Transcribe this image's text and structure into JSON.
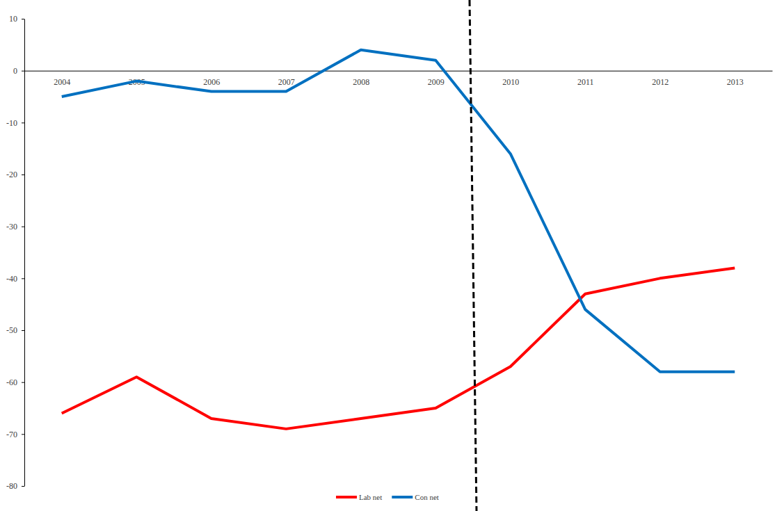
{
  "chart_data": {
    "type": "line",
    "categories": [
      "2004",
      "2005",
      "2006",
      "2007",
      "2008",
      "2009",
      "2010",
      "2011",
      "2012",
      "2013"
    ],
    "series": [
      {
        "name": "Lab net",
        "color": "#ff0000",
        "values": [
          -66,
          -59,
          -67,
          -69,
          -67,
          -65,
          -57,
          -43,
          -40,
          -38
        ]
      },
      {
        "name": "Con net",
        "color": "#0070c0",
        "values": [
          -5,
          -2,
          -4,
          -4,
          4,
          2,
          -16,
          -46,
          -58,
          -58
        ]
      }
    ],
    "ylim": [
      -80,
      10
    ],
    "yticks": [
      -80,
      -70,
      -60,
      -50,
      -40,
      -30,
      -20,
      -10,
      0,
      10
    ],
    "grid": false,
    "legend": "bottom"
  }
}
